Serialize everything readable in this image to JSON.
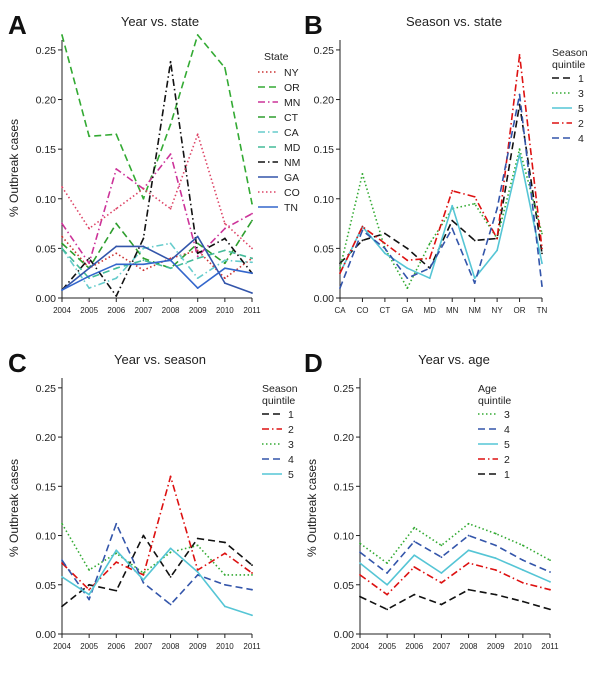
{
  "colors": {
    "NY": "#cc3333",
    "OR": "#33aa33",
    "MN": "#cc3399",
    "CT": "#2e9e2e",
    "CA": "#66cccc",
    "MD": "#44bb99",
    "NM": "#111111",
    "GA": "#3355aa",
    "CO": "#dd4466",
    "TN": "#3366cc",
    "q1": "#111111",
    "q2": "#dd1111",
    "q3": "#33aa33",
    "q4": "#3355aa",
    "q5": "#55c5d5"
  },
  "chart_data": [
    {
      "id": "A",
      "type": "line",
      "panel_label": "A",
      "title": "Year vs. state",
      "ylabel": "% Outbreak cases",
      "xlabel": "",
      "x": [
        "2004",
        "2005",
        "2006",
        "2007",
        "2008",
        "2009",
        "2010",
        "2011"
      ],
      "ylim": [
        0,
        0.26
      ],
      "yticks": [
        "0.00",
        "0.05",
        "0.10",
        "0.15",
        "0.20",
        "0.25"
      ],
      "legend_title": "State",
      "legend_position": "right",
      "series": [
        {
          "name": "NY",
          "color_key": "NY",
          "dash": "dot",
          "values": [
            0.062,
            0.03,
            0.045,
            0.028,
            0.04,
            0.048,
            0.02,
            0.04
          ]
        },
        {
          "name": "OR",
          "color_key": "OR",
          "dash": "dash",
          "values": [
            0.265,
            0.163,
            0.165,
            0.1,
            0.175,
            0.265,
            0.232,
            0.095
          ]
        },
        {
          "name": "MN",
          "color_key": "MN",
          "dash": "dashdot",
          "values": [
            0.075,
            0.035,
            0.13,
            0.11,
            0.145,
            0.042,
            0.07,
            0.085
          ]
        },
        {
          "name": "CT",
          "color_key": "CT",
          "dash": "dash",
          "values": [
            0.055,
            0.03,
            0.075,
            0.04,
            0.03,
            0.055,
            0.035,
            0.078
          ]
        },
        {
          "name": "CA",
          "color_key": "CA",
          "dash": "dashdot",
          "values": [
            0.05,
            0.01,
            0.02,
            0.05,
            0.055,
            0.02,
            0.038,
            0.036
          ]
        },
        {
          "name": "MD",
          "color_key": "MD",
          "dash": "dash",
          "values": [
            0.05,
            0.02,
            0.03,
            0.038,
            0.03,
            0.04,
            0.048,
            0.04
          ]
        },
        {
          "name": "NM",
          "color_key": "NM",
          "dash": "dashdot",
          "values": [
            0.008,
            0.04,
            0.002,
            0.06,
            0.238,
            0.045,
            0.06,
            0.025
          ]
        },
        {
          "name": "GA",
          "color_key": "GA",
          "dash": "solid",
          "values": [
            0.008,
            0.03,
            0.052,
            0.052,
            0.038,
            0.062,
            0.015,
            0.005
          ]
        },
        {
          "name": "CO",
          "color_key": "CO",
          "dash": "dot",
          "values": [
            0.112,
            0.07,
            0.09,
            0.11,
            0.09,
            0.165,
            0.075,
            0.05
          ]
        },
        {
          "name": "TN",
          "color_key": "TN",
          "dash": "solid",
          "values": [
            0.008,
            0.022,
            0.034,
            0.034,
            0.038,
            0.01,
            0.03,
            0.025
          ]
        }
      ]
    },
    {
      "id": "B",
      "type": "line",
      "panel_label": "B",
      "title": "Season vs. state",
      "ylabel": "",
      "xlabel": "",
      "x": [
        "CA",
        "CO",
        "CT",
        "GA",
        "MD",
        "MN",
        "NM",
        "NY",
        "OR",
        "TN"
      ],
      "ylim": [
        0,
        0.26
      ],
      "yticks": [
        "0.00",
        "0.05",
        "0.10",
        "0.15",
        "0.20",
        "0.25"
      ],
      "legend_title": "Season quintile",
      "legend_position": "right",
      "series": [
        {
          "name": "1",
          "color_key": "q1",
          "dash": "dash",
          "values": [
            0.035,
            0.058,
            0.065,
            0.05,
            0.03,
            0.078,
            0.058,
            0.06,
            0.195,
            0.045
          ]
        },
        {
          "name": "3",
          "color_key": "q3",
          "dash": "dot",
          "values": [
            0.03,
            0.125,
            0.05,
            0.01,
            0.055,
            0.09,
            0.095,
            0.06,
            0.15,
            0.065
          ]
        },
        {
          "name": "5",
          "color_key": "q5",
          "dash": "solid",
          "values": [
            0.025,
            0.072,
            0.045,
            0.03,
            0.02,
            0.093,
            0.02,
            0.048,
            0.145,
            0.035
          ]
        },
        {
          "name": "2",
          "color_key": "q2",
          "dash": "dashdot",
          "values": [
            0.025,
            0.072,
            0.055,
            0.038,
            0.04,
            0.108,
            0.102,
            0.06,
            0.245,
            0.05
          ]
        },
        {
          "name": "4",
          "color_key": "q4",
          "dash": "dash",
          "values": [
            0.01,
            0.068,
            0.05,
            0.02,
            0.03,
            0.07,
            0.015,
            0.09,
            0.205,
            0.012
          ]
        }
      ]
    },
    {
      "id": "C",
      "type": "line",
      "panel_label": "C",
      "title": "Year vs. season",
      "ylabel": "% Outbreak cases",
      "xlabel": "",
      "x": [
        "2004",
        "2005",
        "2006",
        "2007",
        "2008",
        "2009",
        "2010",
        "2011"
      ],
      "ylim": [
        0,
        0.26
      ],
      "yticks": [
        "0.00",
        "0.05",
        "0.10",
        "0.15",
        "0.20",
        "0.25"
      ],
      "legend_title": "Season quintile",
      "legend_position": "right",
      "series": [
        {
          "name": "1",
          "color_key": "q1",
          "dash": "dash",
          "values": [
            0.028,
            0.05,
            0.044,
            0.1,
            0.058,
            0.097,
            0.093,
            0.07
          ]
        },
        {
          "name": "2",
          "color_key": "q2",
          "dash": "dashdot",
          "values": [
            0.072,
            0.045,
            0.073,
            0.06,
            0.16,
            0.065,
            0.082,
            0.062
          ]
        },
        {
          "name": "3",
          "color_key": "q3",
          "dash": "dot",
          "values": [
            0.112,
            0.065,
            0.082,
            0.062,
            0.083,
            0.09,
            0.06,
            0.06
          ]
        },
        {
          "name": "4",
          "color_key": "q4",
          "dash": "dash",
          "values": [
            0.075,
            0.035,
            0.112,
            0.052,
            0.03,
            0.06,
            0.05,
            0.045
          ]
        },
        {
          "name": "5",
          "color_key": "q5",
          "dash": "solid",
          "values": [
            0.058,
            0.04,
            0.085,
            0.055,
            0.087,
            0.063,
            0.028,
            0.019
          ]
        }
      ]
    },
    {
      "id": "D",
      "type": "line",
      "panel_label": "D",
      "title": "Year vs. age",
      "ylabel": "% Outbreak cases",
      "xlabel": "",
      "x": [
        "2004",
        "2005",
        "2006",
        "2007",
        "2008",
        "2009",
        "2010",
        "2011"
      ],
      "ylim": [
        0,
        0.26
      ],
      "yticks": [
        "0.00",
        "0.05",
        "0.10",
        "0.15",
        "0.20",
        "0.25"
      ],
      "legend_title": "Age quintile",
      "legend_position": "right",
      "series": [
        {
          "name": "3",
          "color_key": "q3",
          "dash": "dot",
          "values": [
            0.092,
            0.072,
            0.108,
            0.09,
            0.112,
            0.102,
            0.09,
            0.075
          ]
        },
        {
          "name": "4",
          "color_key": "q4",
          "dash": "dash",
          "values": [
            0.083,
            0.062,
            0.094,
            0.078,
            0.1,
            0.09,
            0.075,
            0.063
          ]
        },
        {
          "name": "5",
          "color_key": "q5",
          "dash": "solid",
          "values": [
            0.072,
            0.05,
            0.08,
            0.062,
            0.085,
            0.077,
            0.065,
            0.053
          ]
        },
        {
          "name": "2",
          "color_key": "q2",
          "dash": "dashdot",
          "values": [
            0.06,
            0.04,
            0.068,
            0.052,
            0.072,
            0.065,
            0.052,
            0.045
          ]
        },
        {
          "name": "1",
          "color_key": "q1",
          "dash": "dash",
          "values": [
            0.038,
            0.025,
            0.04,
            0.03,
            0.045,
            0.04,
            0.033,
            0.025
          ]
        }
      ]
    }
  ]
}
